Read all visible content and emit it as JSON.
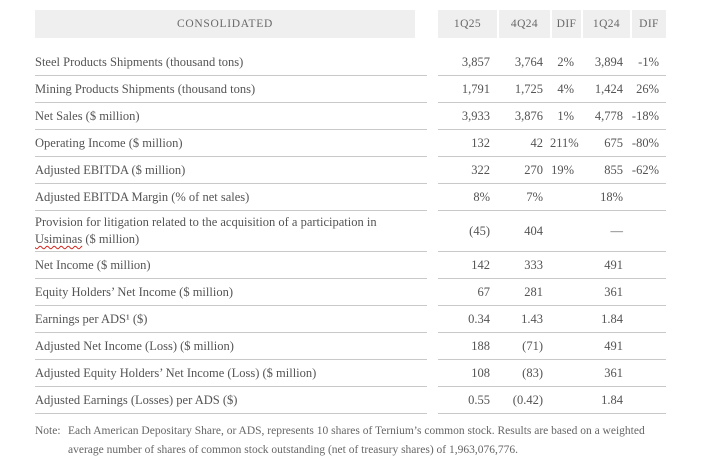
{
  "colors": {
    "header_bg": "#efefef",
    "header_text": "#686868",
    "body_text": "#545454",
    "line": "#c9c9c9",
    "note_text": "#666666",
    "misspelling_underline": "#d0241b"
  },
  "table": {
    "header": {
      "label": "CONSOLIDATED",
      "columns": [
        "1Q25",
        "4Q24",
        "DIF",
        "1Q24",
        "DIF"
      ]
    },
    "rows": [
      {
        "label": "Steel Products Shipments (thousand tons)",
        "values": [
          "3,857",
          "3,764",
          "2%",
          "3,894",
          "-1%"
        ]
      },
      {
        "label": "Mining Products Shipments (thousand tons)",
        "values": [
          "1,791",
          "1,725",
          "4%",
          "1,424",
          "26%"
        ]
      },
      {
        "label": "Net Sales ($ million)",
        "values": [
          "3,933",
          "3,876",
          "1%",
          "4,778",
          "-18%"
        ]
      },
      {
        "label": "Operating Income ($ million)",
        "values": [
          "132",
          "42",
          "211%",
          "675",
          "-80%"
        ]
      },
      {
        "label": "Adjusted EBITDA ($ million)",
        "values": [
          "322",
          "270",
          "19%",
          "855",
          "-62%"
        ]
      },
      {
        "label": "Adjusted EBITDA Margin (% of net sales)",
        "values": [
          "8%",
          "7%",
          "",
          "18%",
          ""
        ]
      },
      {
        "label": "Provision for litigation related to the acquisition of a participation in Usiminas ($ million)",
        "misspelled_word": "Usiminas",
        "values": [
          "(45)",
          "404",
          "",
          "—",
          ""
        ]
      },
      {
        "label": "Net Income ($ million)",
        "values": [
          "142",
          "333",
          "",
          "491",
          ""
        ]
      },
      {
        "label": "Equity Holders’ Net Income ($ million)",
        "values": [
          "67",
          "281",
          "",
          "361",
          ""
        ]
      },
      {
        "label": "Earnings per ADS¹ ($)",
        "values": [
          "0.34",
          "1.43",
          "",
          "1.84",
          ""
        ]
      },
      {
        "label": "Adjusted Net Income (Loss) ($ million)",
        "values": [
          "188",
          "(71)",
          "",
          "491",
          ""
        ]
      },
      {
        "label": "Adjusted Equity Holders’ Net Income (Loss) ($ million)",
        "values": [
          "108",
          "(83)",
          "",
          "361",
          ""
        ]
      },
      {
        "label": "Adjusted Earnings (Losses) per ADS ($)",
        "values": [
          "0.55",
          "(0.42)",
          "",
          "1.84",
          ""
        ]
      }
    ]
  },
  "note": {
    "label": "Note:",
    "text": "Each American Depositary Share, or ADS, represents 10 shares of Ternium’s common stock. Results are based on a weighted average number of shares of common stock outstanding (net of treasury shares) of 1,963,076,776."
  }
}
